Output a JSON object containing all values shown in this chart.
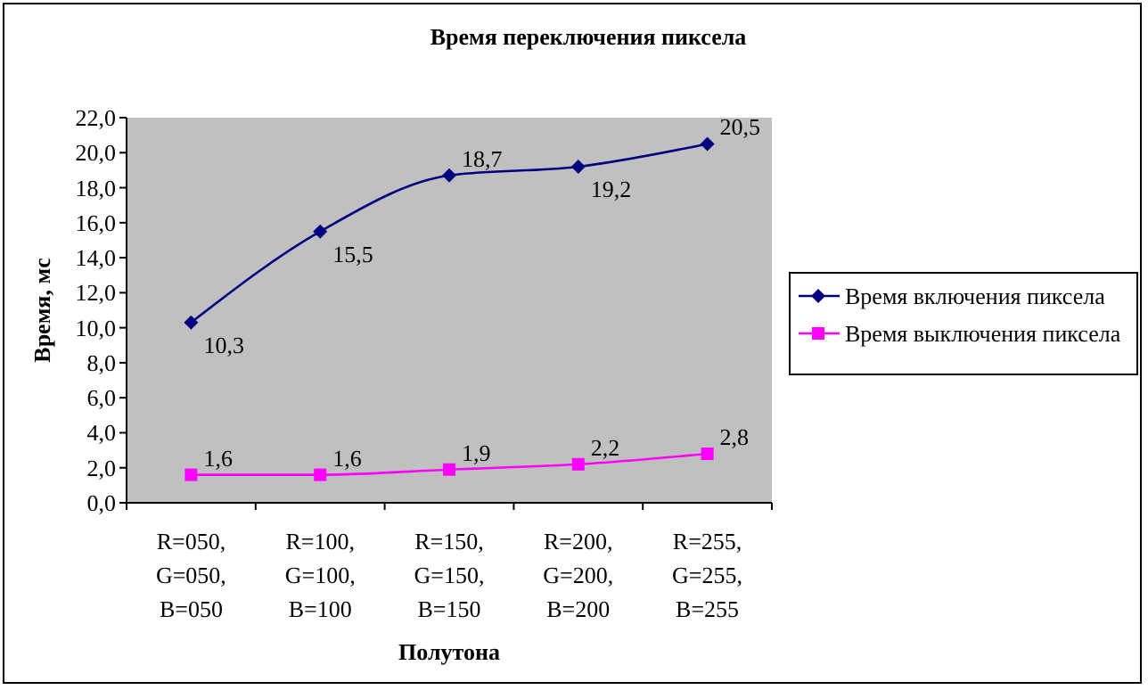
{
  "chart_data": {
    "type": "line",
    "title": "Время переключения пиксела",
    "xlabel": "Полутона",
    "ylabel": "Время, мс",
    "categories": [
      "R=050, G=050, B=050",
      "R=100, G=100, B=100",
      "R=150, G=150, B=150",
      "R=200, G=200, B=200",
      "R=255, G=255, B=255"
    ],
    "series": [
      {
        "name": "Время включения пиксела",
        "color": "#000080",
        "marker": "diamond",
        "values": [
          10.3,
          15.5,
          18.7,
          19.2,
          20.5
        ],
        "value_labels": [
          "10,3",
          "15,5",
          "18,7",
          "19,2",
          "20,5"
        ]
      },
      {
        "name": "Время выключения пиксела",
        "color": "#ff00ff",
        "marker": "square",
        "values": [
          1.6,
          1.6,
          1.9,
          2.2,
          2.8
        ],
        "value_labels": [
          "1,6",
          "1,6",
          "1,9",
          "2,2",
          "2,8"
        ]
      }
    ],
    "ylim": [
      0,
      22
    ],
    "yticks": [
      {
        "value": 0,
        "label": "0,0"
      },
      {
        "value": 2,
        "label": "2,0"
      },
      {
        "value": 4,
        "label": "4,0"
      },
      {
        "value": 6,
        "label": "6,0"
      },
      {
        "value": 8,
        "label": "8,0"
      },
      {
        "value": 10,
        "label": "10,0"
      },
      {
        "value": 12,
        "label": "12,0"
      },
      {
        "value": 14,
        "label": "14,0"
      },
      {
        "value": 16,
        "label": "16,0"
      },
      {
        "value": 18,
        "label": "18,0"
      },
      {
        "value": 20,
        "label": "20,0"
      },
      {
        "value": 22,
        "label": "22,0"
      }
    ],
    "grid": false,
    "legend": "right"
  }
}
